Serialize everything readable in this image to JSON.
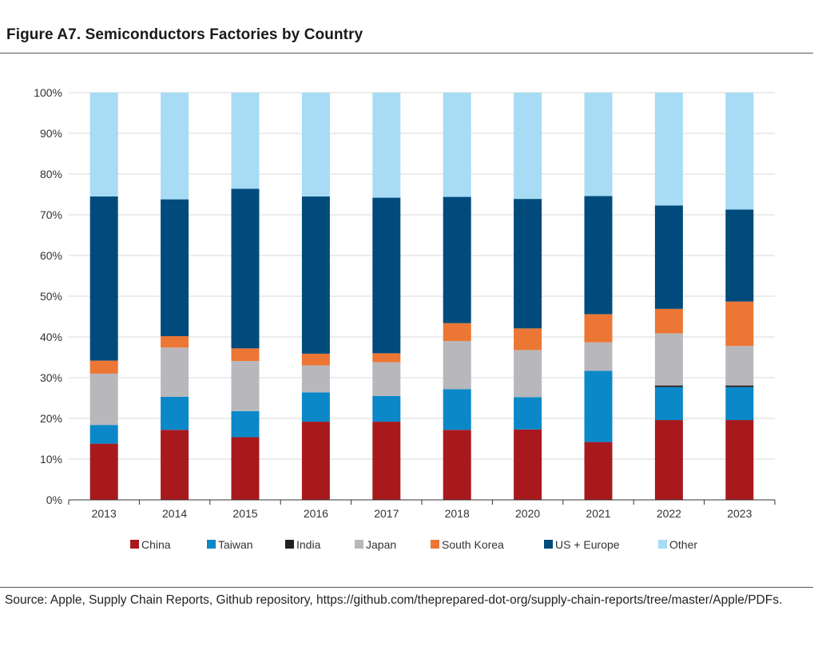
{
  "figure": {
    "title": "Figure A7. Semiconductors Factories by Country",
    "source": "Source: Apple, Supply Chain Reports, Github repository, https://github.com/theprepared-dot-org/supply-chain-reports/tree/master/Apple/PDFs."
  },
  "chart_data": {
    "type": "bar",
    "stacked": true,
    "title": "",
    "xlabel": "",
    "ylabel": "",
    "ylim": [
      0,
      100
    ],
    "y_tick_labels": [
      "0%",
      "10%",
      "20%",
      "30%",
      "40%",
      "50%",
      "60%",
      "70%",
      "80%",
      "90%",
      "100%"
    ],
    "grid": true,
    "legend_position": "bottom",
    "categories": [
      "2013",
      "2014",
      "2015",
      "2016",
      "2017",
      "2018",
      "2020",
      "2021",
      "2022",
      "2023"
    ],
    "series": [
      {
        "name": "China",
        "color": "#a8191e",
        "values": [
          13.8,
          17.2,
          15.4,
          19.2,
          19.2,
          17.2,
          17.3,
          14.2,
          19.6,
          19.6
        ]
      },
      {
        "name": "Taiwan",
        "color": "#0a88c8",
        "values": [
          4.6,
          8.1,
          6.4,
          7.2,
          6.3,
          10.0,
          7.9,
          17.5,
          8.1,
          8.1
        ]
      },
      {
        "name": "India",
        "color": "#231f20",
        "values": [
          0,
          0,
          0,
          0,
          0,
          0,
          0,
          0,
          0.4,
          0.4
        ]
      },
      {
        "name": "Japan",
        "color": "#b8b7bc",
        "values": [
          12.6,
          12.1,
          12.3,
          6.6,
          8.3,
          11.8,
          11.6,
          7.0,
          12.8,
          9.7
        ]
      },
      {
        "name": "South Korea",
        "color": "#ec7634",
        "values": [
          3.2,
          2.8,
          3.1,
          2.9,
          2.2,
          4.4,
          5.3,
          6.9,
          6.0,
          10.9
        ]
      },
      {
        "name": "US + Europe",
        "color": "#004b7c",
        "values": [
          40.3,
          33.6,
          39.2,
          38.6,
          38.2,
          31.0,
          31.8,
          29.0,
          25.4,
          22.6
        ]
      },
      {
        "name": "Other",
        "color": "#a7dcf4",
        "values": [
          25.5,
          26.2,
          23.6,
          25.5,
          25.8,
          25.6,
          26.1,
          25.4,
          27.7,
          28.7
        ]
      }
    ]
  }
}
